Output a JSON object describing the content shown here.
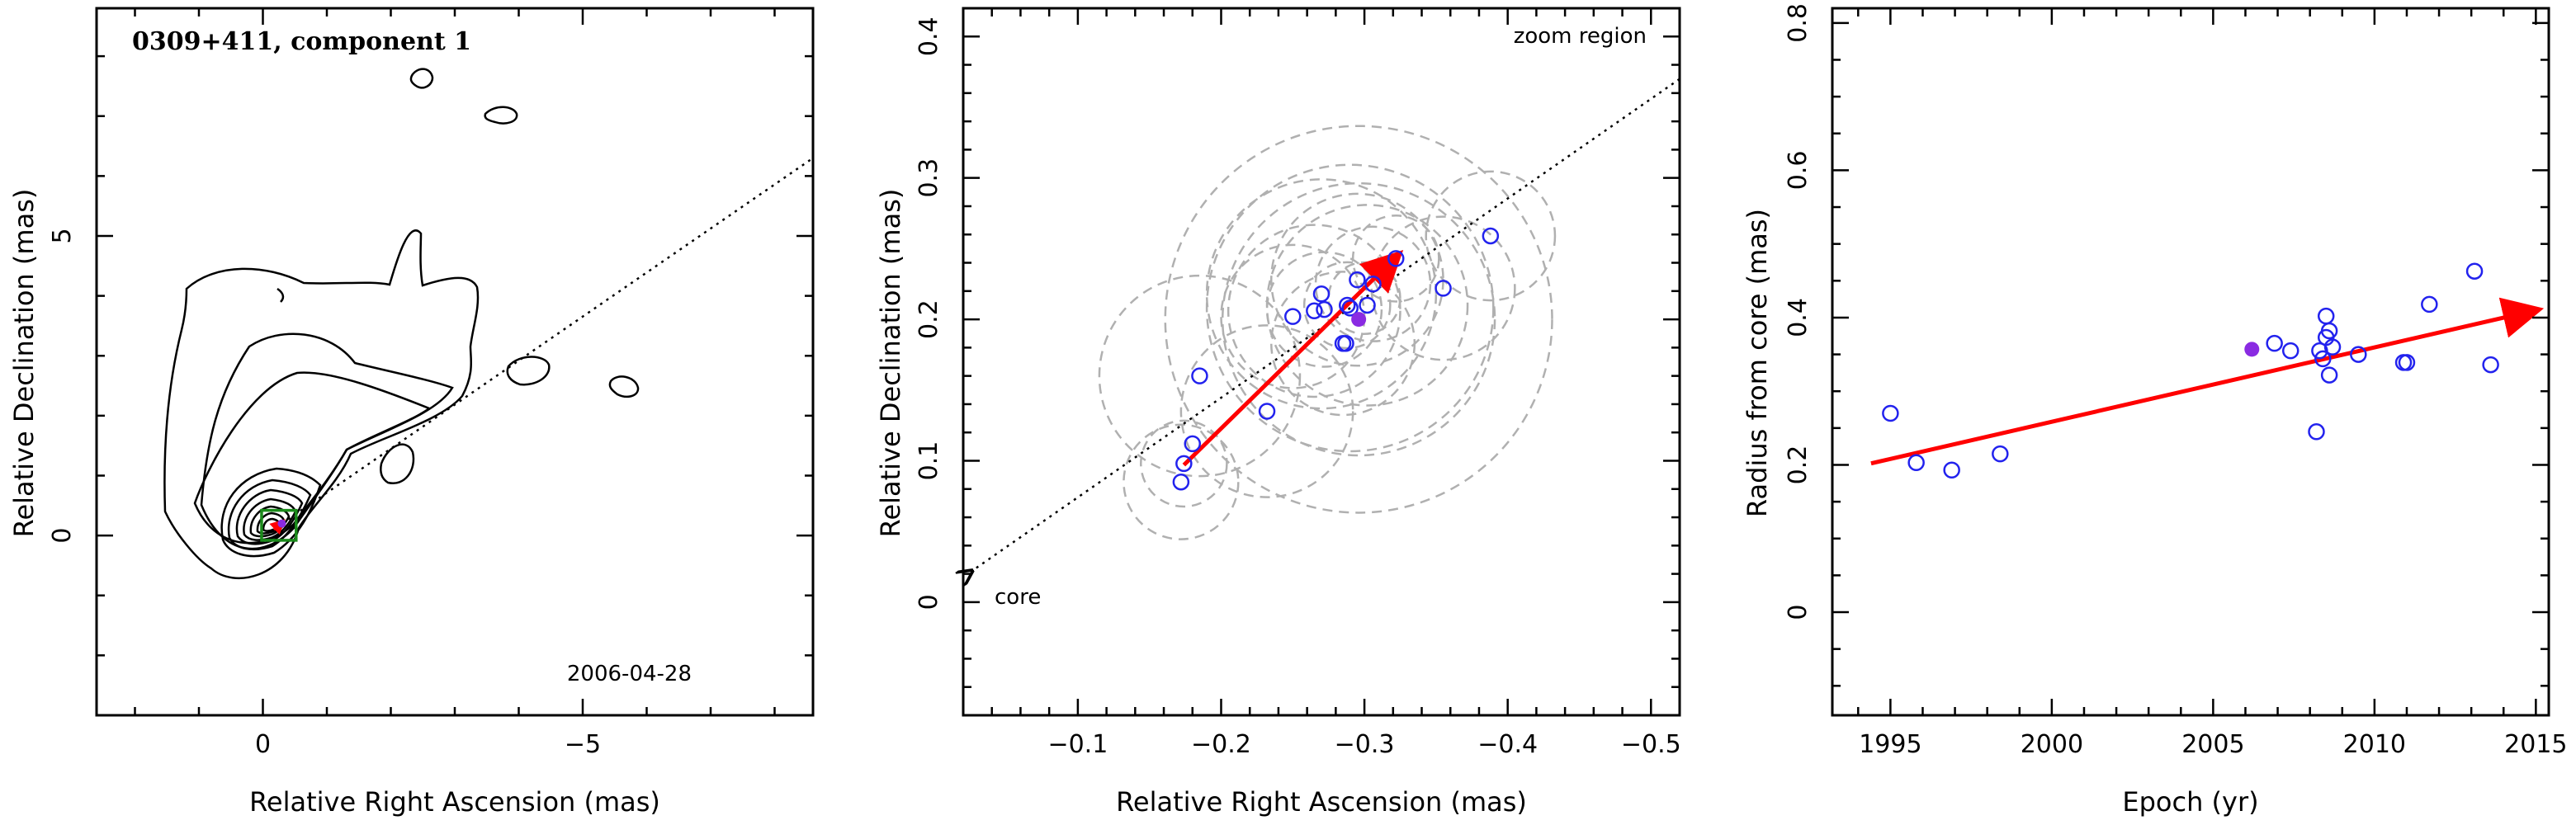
{
  "colors": {
    "points": "#2222ee",
    "filled": "#8a2be2",
    "arrow": "#ff0000",
    "circles": "#b0b0b0",
    "box": "#1a8a1a"
  },
  "chart_data": [
    {
      "type": "contour",
      "title": "0309+411, component 1",
      "date": "2006-04-28",
      "xlabel": "Relative Right Ascension (mas)",
      "ylabel": "Relative Declination (mas)",
      "xlim": [
        2.6,
        -8.6
      ],
      "ylim": [
        -3.0,
        8.8
      ],
      "xticks": [
        0,
        -5
      ],
      "yticks": [
        0,
        5
      ],
      "jet_direction_line": {
        "from": [
          -0.3,
          0.2
        ],
        "to": [
          -8.6,
          6.3
        ]
      }
    },
    {
      "type": "scatter",
      "annotation_top": "zoom region",
      "annotation_core": "core",
      "xlabel": "Relative Right Ascension (mas)",
      "ylabel": "Relative Declination (mas)",
      "xlim": [
        -0.02,
        -0.52
      ],
      "ylim": [
        -0.08,
        0.42
      ],
      "xticks": [
        -0.1,
        -0.2,
        -0.3,
        -0.4,
        -0.5
      ],
      "xtick_labels": [
        "−0.1",
        "−0.2",
        "−0.3",
        "−0.4",
        "−0.5"
      ],
      "yticks": [
        0,
        0.1,
        0.2,
        0.3,
        0.4
      ],
      "ytick_labels": [
        "0",
        "0.1",
        "0.2",
        "0.3",
        "0.4"
      ],
      "points": [
        [
          -0.172,
          0.085
        ],
        [
          -0.174,
          0.098
        ],
        [
          -0.18,
          0.112
        ],
        [
          -0.185,
          0.16
        ],
        [
          -0.232,
          0.135
        ],
        [
          -0.25,
          0.202
        ],
        [
          -0.265,
          0.206
        ],
        [
          -0.27,
          0.218
        ],
        [
          -0.272,
          0.207
        ],
        [
          -0.285,
          0.183
        ],
        [
          -0.287,
          0.183
        ],
        [
          -0.288,
          0.21
        ],
        [
          -0.29,
          0.208
        ],
        [
          -0.295,
          0.228
        ],
        [
          -0.302,
          0.21
        ],
        [
          -0.306,
          0.225
        ],
        [
          -0.322,
          0.243
        ],
        [
          -0.355,
          0.222
        ],
        [
          -0.388,
          0.259
        ]
      ],
      "highlight_point": [
        -0.296,
        0.2
      ],
      "error_circles": [
        [
          -0.172,
          0.085,
          0.04
        ],
        [
          -0.174,
          0.098,
          0.03
        ],
        [
          -0.185,
          0.16,
          0.07
        ],
        [
          -0.232,
          0.135,
          0.06
        ],
        [
          -0.25,
          0.202,
          0.05
        ],
        [
          -0.265,
          0.206,
          0.06
        ],
        [
          -0.27,
          0.218,
          0.08
        ],
        [
          -0.272,
          0.207,
          0.04
        ],
        [
          -0.285,
          0.183,
          0.05
        ],
        [
          -0.288,
          0.21,
          0.03
        ],
        [
          -0.29,
          0.208,
          0.1
        ],
        [
          -0.295,
          0.228,
          0.06
        ],
        [
          -0.302,
          0.21,
          0.07
        ],
        [
          -0.306,
          0.225,
          0.04
        ],
        [
          -0.322,
          0.243,
          0.03
        ],
        [
          -0.355,
          0.222,
          0.05
        ],
        [
          -0.388,
          0.259,
          0.045
        ],
        [
          -0.296,
          0.2,
          0.135
        ],
        [
          -0.296,
          0.2,
          0.095
        ],
        [
          -0.3,
          0.215,
          0.025
        ]
      ],
      "velocity_arrow": {
        "from": [
          -0.174,
          0.097
        ],
        "to": [
          -0.323,
          0.245
        ]
      },
      "direction_line": {
        "from": [
          -0.52,
          0.37
        ],
        "to": [
          -0.026,
          0.022
        ]
      }
    },
    {
      "type": "scatter",
      "xlabel": "Epoch (yr)",
      "ylabel": "Radius from core (mas)",
      "xlim": [
        1993.2,
        2015.4
      ],
      "ylim": [
        -0.14,
        0.82
      ],
      "xticks": [
        1995,
        2000,
        2005,
        2010,
        2015
      ],
      "yticks": [
        0,
        0.2,
        0.4,
        0.6,
        0.8
      ],
      "points": [
        [
          1995.0,
          0.27
        ],
        [
          1995.8,
          0.203
        ],
        [
          1996.9,
          0.193
        ],
        [
          1998.4,
          0.215
        ],
        [
          2006.9,
          0.365
        ],
        [
          2007.4,
          0.355
        ],
        [
          2008.2,
          0.245
        ],
        [
          2008.3,
          0.355
        ],
        [
          2008.4,
          0.344
        ],
        [
          2008.5,
          0.373
        ],
        [
          2008.5,
          0.402
        ],
        [
          2008.6,
          0.382
        ],
        [
          2008.6,
          0.322
        ],
        [
          2008.7,
          0.36
        ],
        [
          2009.5,
          0.35
        ],
        [
          2010.9,
          0.339
        ],
        [
          2011.0,
          0.339
        ],
        [
          2011.7,
          0.418
        ],
        [
          2013.1,
          0.463
        ],
        [
          2013.6,
          0.336
        ]
      ],
      "highlight_point": [
        2006.2,
        0.357
      ],
      "trend_arrow": {
        "from": [
          1994.4,
          0.202
        ],
        "to": [
          2015.0,
          0.41
        ]
      }
    }
  ]
}
